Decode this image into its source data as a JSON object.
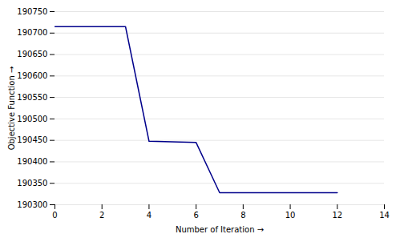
{
  "chart_data": {
    "type": "line",
    "xlabel": "Number of Iteration",
    "ylabel": "Objective Function",
    "x": [
      0,
      3,
      4,
      6,
      7,
      12
    ],
    "values": [
      190715,
      190715,
      190448,
      190445,
      190328,
      190328
    ],
    "color": "#00008B",
    "xlim": [
      0,
      14
    ],
    "ylim": [
      190300,
      190750
    ],
    "xticks": [
      0,
      2,
      4,
      6,
      8,
      10,
      12,
      14
    ],
    "yticks": [
      190300,
      190350,
      190400,
      190450,
      190500,
      190550,
      190600,
      190650,
      190700,
      190750
    ],
    "grid": "y"
  }
}
